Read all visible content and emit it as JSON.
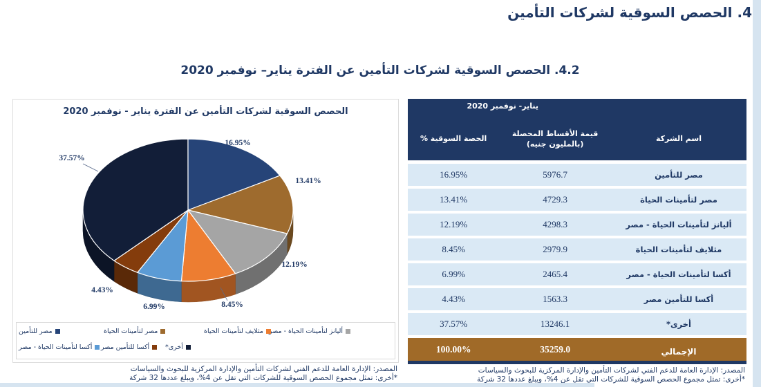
{
  "page": {
    "heading": "4.  الحصص السوقية لشركات التأمين",
    "subheading": "4.2. الحصص السوقية لشركات التأمين عن الفترة يناير– نوفمبر 2020"
  },
  "chart": {
    "title": "الحصص السوقية لشركات التأمين عن الفترة يناير - نوفمبر 2020"
  },
  "chart_data": {
    "type": "pie",
    "title": "الحصص السوقية لشركات التأمين عن الفترة يناير - نوفمبر 2020",
    "labels": [
      "مصر للتأمين",
      "مصر لتأمينات الحياة",
      "أليانز لتأمينات الحياة - مصر",
      "مثلايف لتأمينات الحياة",
      "أكسا لتأمينات الحياة - مصر",
      "أكسا للتأمين مصر",
      "أخرى*"
    ],
    "values": [
      16.95,
      13.41,
      12.19,
      8.45,
      6.99,
      4.43,
      37.57
    ],
    "data_labels": [
      "16.95%",
      "13.41%",
      "12.19%",
      "8.45%",
      "6.99%",
      "4.43%",
      "37.57%"
    ],
    "colors": [
      "#264478",
      "#9E6B2E",
      "#A5A5A5",
      "#ED7D31",
      "#5B9BD5",
      "#843C0C",
      "#121E38"
    ],
    "legend_position": "bottom",
    "start_angle_deg": 90,
    "direction": "clockwise",
    "style": "3d-pie"
  },
  "table": {
    "period_header": "يناير- نوفمبر 2020",
    "columns": [
      "الحصة السوقية %",
      "قيمة الأقساط المحصلة (بالمليون جنيه)",
      "اسم الشركة"
    ],
    "rows": [
      {
        "share": "16.95%",
        "premiums": "5976.7",
        "company": "مصر للتأمين"
      },
      {
        "share": "13.41%",
        "premiums": "4729.3",
        "company": "مصر لتأمينات الحياة"
      },
      {
        "share": "12.19%",
        "premiums": "4298.3",
        "company": "أليانز لتأمينات الحياة - مصر"
      },
      {
        "share": "8.45%",
        "premiums": "2979.9",
        "company": "مثلايف لتأمينات الحياة"
      },
      {
        "share": "6.99%",
        "premiums": "2465.4",
        "company": "أكسا لتأمينات الحياة - مصر"
      },
      {
        "share": "4.43%",
        "premiums": "1563.3",
        "company": "أكسا للتأمين مصر"
      },
      {
        "share": "37.57%",
        "premiums": "13246.1",
        "company": "أخرى*"
      }
    ],
    "total": {
      "share": "100.00%",
      "premiums": "35259.0",
      "company": "الإجمالي"
    }
  },
  "footnotes": {
    "source": "المصدر: الإدارة العامة للدعم الفني لشركات التأمين والإدارة المركزية للبحوث والسياسات",
    "note": "*أخرى: تمثل مجموع الحصص السوقية للشركات التي تقل عن 4%، ويبلغ عددها 32 شركة"
  }
}
